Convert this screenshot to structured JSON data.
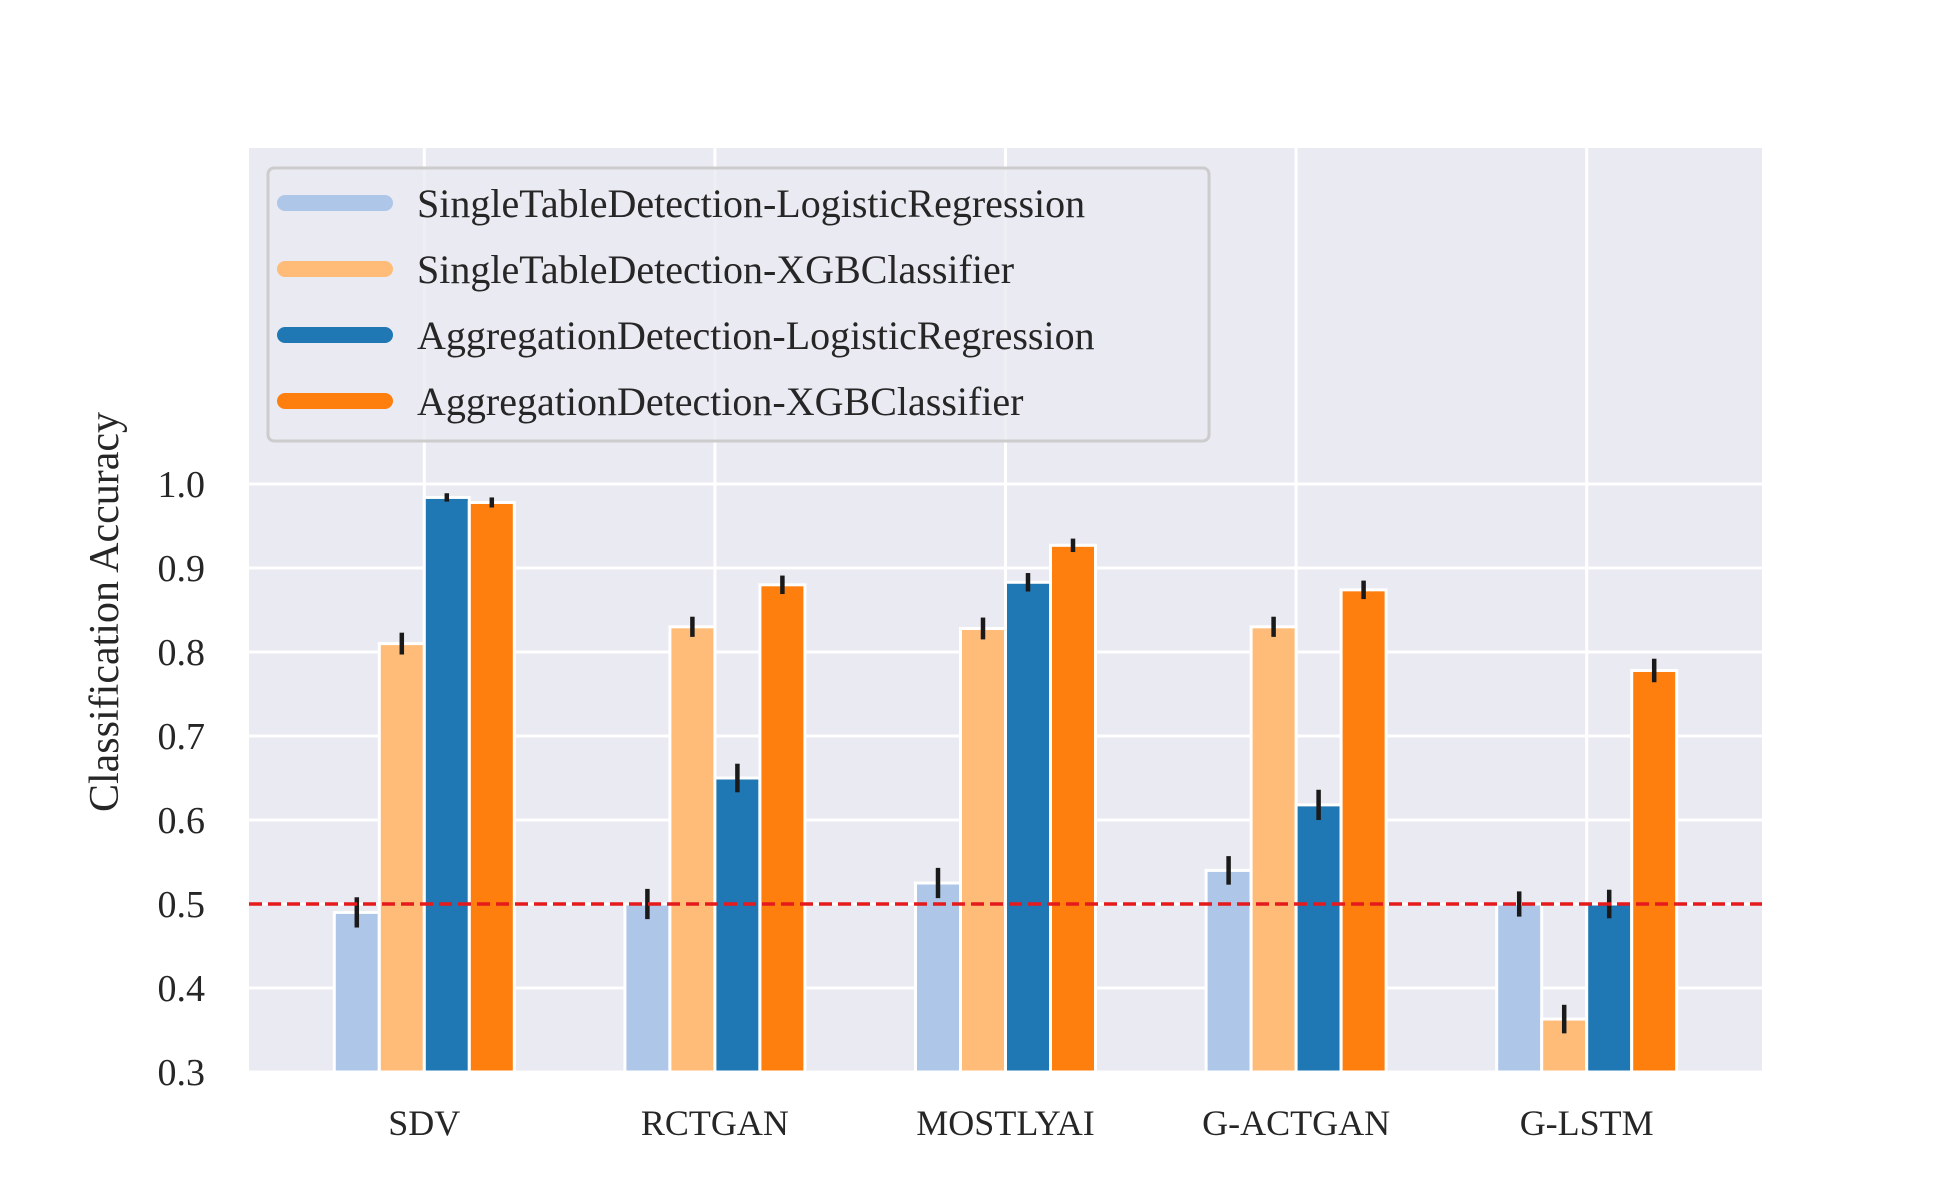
{
  "chart_data": {
    "type": "bar",
    "title": "",
    "xlabel": "",
    "ylabel": "Classification Accuracy",
    "ylim": [
      0.3,
      1.4
    ],
    "yticks": [
      0.3,
      0.4,
      0.5,
      0.6,
      0.7,
      0.8,
      0.9,
      1.0
    ],
    "ytick_labels": [
      "0.3",
      "0.4",
      "0.5",
      "0.6",
      "0.7",
      "0.8",
      "0.9",
      "1.0"
    ],
    "grid": true,
    "legend_position": "top-left",
    "categories": [
      "SDV",
      "RCTGAN",
      "MOSTLYAI",
      "G-ACTGAN",
      "G-LSTM"
    ],
    "series": [
      {
        "name": "SingleTableDetection-LogisticRegression",
        "color": "#aec7e8",
        "values": [
          0.49,
          0.5,
          0.525,
          0.54,
          0.5
        ],
        "errors": [
          0.018,
          0.018,
          0.018,
          0.017,
          0.015
        ]
      },
      {
        "name": "SingleTableDetection-XGBClassifier",
        "color": "#ffbb78",
        "values": [
          0.81,
          0.83,
          0.828,
          0.83,
          0.363
        ],
        "errors": [
          0.013,
          0.012,
          0.013,
          0.012,
          0.017
        ]
      },
      {
        "name": "AggregationDetection-LogisticRegression",
        "color": "#1f77b4",
        "values": [
          0.984,
          0.65,
          0.883,
          0.618,
          0.5
        ],
        "errors": [
          0.005,
          0.017,
          0.011,
          0.018,
          0.017
        ]
      },
      {
        "name": "AggregationDetection-XGBClassifier",
        "color": "#ff7f0e",
        "values": [
          0.978,
          0.88,
          0.927,
          0.874,
          0.778
        ],
        "errors": [
          0.006,
          0.011,
          0.008,
          0.011,
          0.014
        ]
      }
    ],
    "reference_line": {
      "value": 0.5,
      "color": "#e41a1c",
      "style": "dashed"
    }
  }
}
